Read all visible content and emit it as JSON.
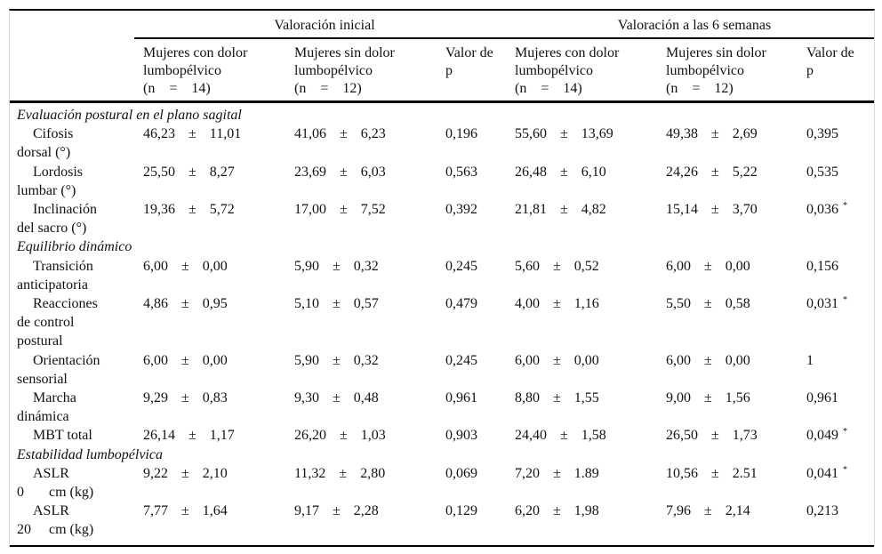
{
  "table": {
    "colors": {
      "rule": "#000000",
      "side_border": "#d9d9d9",
      "text": "#111111"
    },
    "header": {
      "spanner_initial": "Valoración inicial",
      "spanner_6w": "Valoración a las 6 semanas",
      "group_pain_lines": [
        "Mujeres con dolor",
        "lumbopélvico",
        "(n    =    14)"
      ],
      "group_nopain_lines": [
        "Mujeres sin dolor",
        "lumbopélvico",
        "(n    =    12)"
      ],
      "p_lines": [
        "Valor de",
        "p"
      ]
    },
    "sections": [
      {
        "heading": "Evaluación postural en el plano sagital",
        "rows": [
          {
            "label_lines": [
              "Cifosis",
              "dorsal (°)"
            ],
            "initial_pain": {
              "mean": "46,23",
              "pm": "±",
              "sd": "11,01"
            },
            "initial_nopain": {
              "mean": "41,06",
              "pm": "±",
              "sd": "6,23"
            },
            "initial_p": {
              "value": "0,196",
              "sig": false
            },
            "w6_pain": {
              "mean": "55,60",
              "pm": "±",
              "sd": "13,69"
            },
            "w6_nopain": {
              "mean": "49,38",
              "pm": "±",
              "sd": "2,69"
            },
            "w6_p": {
              "value": "0,395",
              "sig": false
            }
          },
          {
            "label_lines": [
              "Lordosis",
              "lumbar (°)"
            ],
            "initial_pain": {
              "mean": "25,50",
              "pm": "±",
              "sd": "8,27"
            },
            "initial_nopain": {
              "mean": "23,69",
              "pm": "±",
              "sd": "6,03"
            },
            "initial_p": {
              "value": "0,563",
              "sig": false
            },
            "w6_pain": {
              "mean": "26,48",
              "pm": "±",
              "sd": "6,10"
            },
            "w6_nopain": {
              "mean": "24,26",
              "pm": "±",
              "sd": "5,22"
            },
            "w6_p": {
              "value": "0,535",
              "sig": false
            }
          },
          {
            "label_lines": [
              "Inclinación",
              "del sacro (°)"
            ],
            "initial_pain": {
              "mean": "19,36",
              "pm": "±",
              "sd": "5,72"
            },
            "initial_nopain": {
              "mean": "17,00",
              "pm": "±",
              "sd": "7,52"
            },
            "initial_p": {
              "value": "0,392",
              "sig": false
            },
            "w6_pain": {
              "mean": "21,81",
              "pm": "±",
              "sd": "4,82"
            },
            "w6_nopain": {
              "mean": "15,14",
              "pm": "±",
              "sd": "3,70"
            },
            "w6_p": {
              "value": "0,036",
              "sig": true
            }
          }
        ]
      },
      {
        "heading": "Equilibrio dinámico",
        "rows": [
          {
            "label_lines": [
              "Transición",
              "anticipatoria"
            ],
            "initial_pain": {
              "mean": "6,00",
              "pm": "±",
              "sd": "0,00"
            },
            "initial_nopain": {
              "mean": "5,90",
              "pm": "±",
              "sd": "0,32"
            },
            "initial_p": {
              "value": "0,245",
              "sig": false
            },
            "w6_pain": {
              "mean": "5,60",
              "pm": "±",
              "sd": "0,52"
            },
            "w6_nopain": {
              "mean": "6,00",
              "pm": "±",
              "sd": "0,00"
            },
            "w6_p": {
              "value": "0,156",
              "sig": false
            }
          },
          {
            "label_lines": [
              "Reacciones",
              "de control",
              "postural"
            ],
            "initial_pain": {
              "mean": "4,86",
              "pm": "±",
              "sd": "0,95"
            },
            "initial_nopain": {
              "mean": "5,10",
              "pm": "±",
              "sd": "0,57"
            },
            "initial_p": {
              "value": "0,479",
              "sig": false
            },
            "w6_pain": {
              "mean": "4,00",
              "pm": "±",
              "sd": "1,16"
            },
            "w6_nopain": {
              "mean": "5,50",
              "pm": "±",
              "sd": "0,58"
            },
            "w6_p": {
              "value": "0,031",
              "sig": true
            }
          },
          {
            "label_lines": [
              "Orientación",
              "sensorial"
            ],
            "initial_pain": {
              "mean": "6,00",
              "pm": "±",
              "sd": "0,00"
            },
            "initial_nopain": {
              "mean": "5,90",
              "pm": "±",
              "sd": "0,32"
            },
            "initial_p": {
              "value": "0,245",
              "sig": false
            },
            "w6_pain": {
              "mean": "6,00",
              "pm": "±",
              "sd": "0,00"
            },
            "w6_nopain": {
              "mean": "6,00",
              "pm": "±",
              "sd": "0,00"
            },
            "w6_p": {
              "value": "1",
              "sig": false
            }
          },
          {
            "label_lines": [
              "Marcha",
              "dinámica"
            ],
            "initial_pain": {
              "mean": "9,29",
              "pm": "±",
              "sd": "0,83"
            },
            "initial_nopain": {
              "mean": "9,30",
              "pm": "±",
              "sd": "0,48"
            },
            "initial_p": {
              "value": "0,961",
              "sig": false
            },
            "w6_pain": {
              "mean": "8,80",
              "pm": "±",
              "sd": "1,55"
            },
            "w6_nopain": {
              "mean": "9,00",
              "pm": "±",
              "sd": "1,56"
            },
            "w6_p": {
              "value": "0,961",
              "sig": false
            }
          },
          {
            "label_lines": [
              "MBT total"
            ],
            "initial_pain": {
              "mean": "26,14",
              "pm": "±",
              "sd": "1,17"
            },
            "initial_nopain": {
              "mean": "26,20",
              "pm": "±",
              "sd": "1,03"
            },
            "initial_p": {
              "value": "0,903",
              "sig": false
            },
            "w6_pain": {
              "mean": "24,40",
              "pm": "±",
              "sd": "1,58"
            },
            "w6_nopain": {
              "mean": "26,50",
              "pm": "±",
              "sd": "1,73"
            },
            "w6_p": {
              "value": "0,049",
              "sig": true
            }
          }
        ]
      },
      {
        "heading": "Estabilidad lumbopélvica",
        "rows": [
          {
            "label_lines": [
              "ASLR",
              "0       cm (kg)"
            ],
            "initial_pain": {
              "mean": "9,22",
              "pm": "±",
              "sd": "2,10"
            },
            "initial_nopain": {
              "mean": "11,32",
              "pm": "±",
              "sd": "2,80"
            },
            "initial_p": {
              "value": "0,069",
              "sig": false
            },
            "w6_pain": {
              "mean": "7,20",
              "pm": "±",
              "sd": "1.89"
            },
            "w6_nopain": {
              "mean": "10,56",
              "pm": "±",
              "sd": "2.51"
            },
            "w6_p": {
              "value": "0,041",
              "sig": true
            }
          },
          {
            "label_lines": [
              "ASLR",
              "20     cm (kg)"
            ],
            "initial_pain": {
              "mean": "7,77",
              "pm": "±",
              "sd": "1,64"
            },
            "initial_nopain": {
              "mean": "9,17",
              "pm": "±",
              "sd": "2,28"
            },
            "initial_p": {
              "value": "0,129",
              "sig": false
            },
            "w6_pain": {
              "mean": "6,20",
              "pm": "±",
              "sd": "1,98"
            },
            "w6_nopain": {
              "mean": "7,96",
              "pm": "±",
              "sd": "2,14"
            },
            "w6_p": {
              "value": "0,213",
              "sig": false
            }
          }
        ]
      }
    ]
  }
}
